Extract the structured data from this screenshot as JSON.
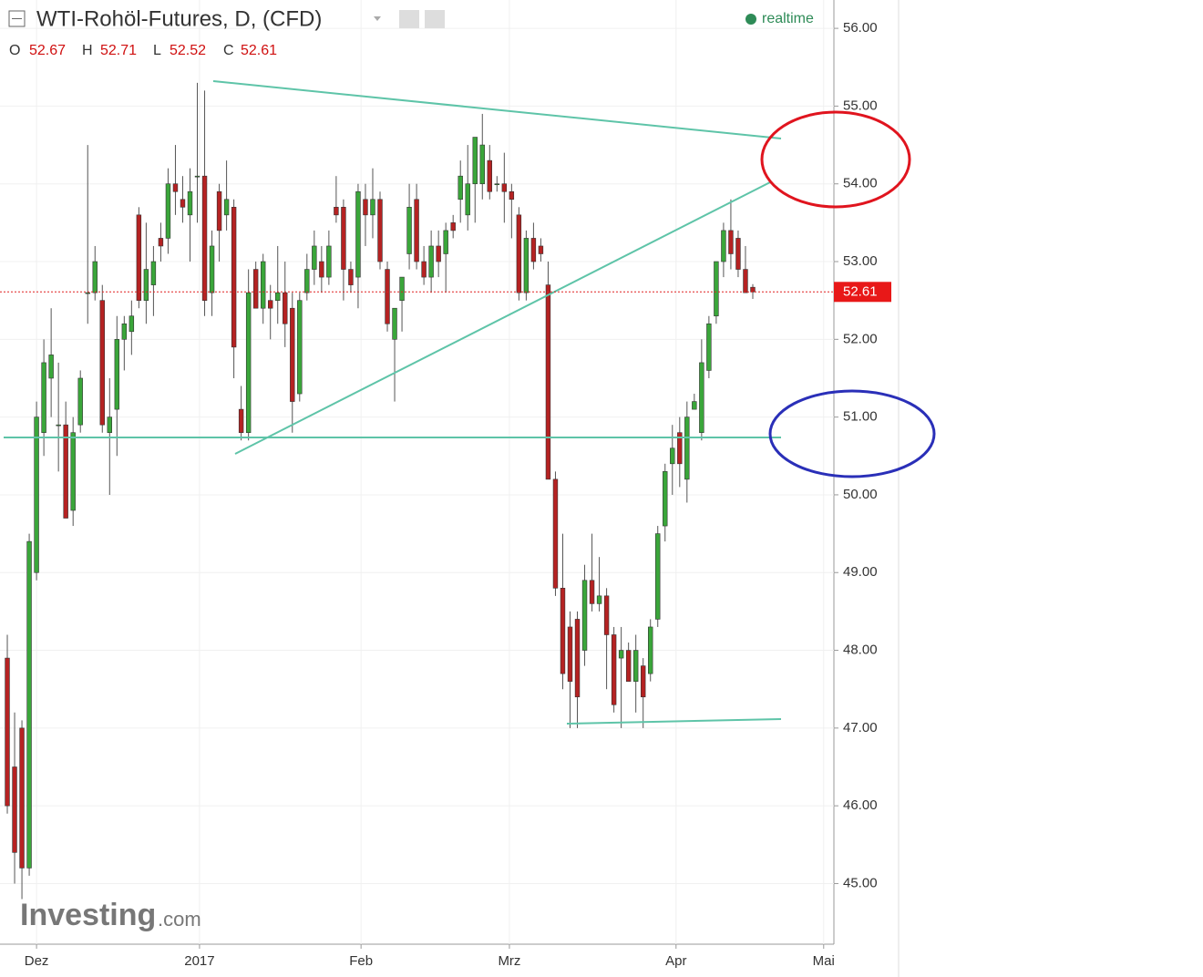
{
  "chart_data": {
    "type": "candlestick",
    "title": "WTI-Rohöl-Futures, D, (CFD)",
    "status": "realtime",
    "ohlc_labels": [
      "O",
      "H",
      "L",
      "C"
    ],
    "watermark": [
      "Investing",
      ".com"
    ],
    "up_color": "#3aa63a",
    "down_color": "#b52222",
    "ylim": [
      44.22,
      56.36
    ],
    "yticks": [
      {
        "value": 45,
        "label": "45.00"
      },
      {
        "value": 46,
        "label": "46.00"
      },
      {
        "value": 47,
        "label": "47.00"
      },
      {
        "value": 48,
        "label": "48.00"
      },
      {
        "value": 49,
        "label": "49.00"
      },
      {
        "value": 50,
        "label": "50.00"
      },
      {
        "value": 51,
        "label": "51.00"
      },
      {
        "value": 52,
        "label": "52.00"
      },
      {
        "value": 53,
        "label": "53.00"
      },
      {
        "value": 54,
        "label": "54.00"
      },
      {
        "value": 55,
        "label": "55.00"
      },
      {
        "value": 56,
        "label": "56.00"
      }
    ],
    "xlim": [
      -1.0,
      113.1
    ],
    "xticks": [
      {
        "value": 4.0,
        "label": "Dez"
      },
      {
        "value": 26.3,
        "label": "2017"
      },
      {
        "value": 48.4,
        "label": "Feb"
      },
      {
        "value": 68.7,
        "label": "Mrz"
      },
      {
        "value": 91.5,
        "label": "Apr"
      },
      {
        "value": 111.7,
        "label": "Mai"
      }
    ],
    "candles": {
      "open": [
        47.9,
        46.5,
        47.0,
        45.2,
        49.0,
        50.8,
        51.5,
        50.9,
        50.9,
        49.8,
        50.9,
        52.6,
        52.6,
        52.5,
        50.8,
        51.1,
        52.0,
        52.1,
        53.6,
        52.5,
        52.7,
        53.3,
        53.3,
        54.0,
        53.8,
        53.6,
        54.1,
        54.1,
        52.6,
        53.9,
        53.6,
        53.7,
        51.1,
        50.8,
        52.9,
        52.4,
        52.5,
        52.5,
        52.6,
        52.4,
        51.3,
        52.6,
        52.9,
        53.0,
        52.8,
        53.7,
        53.7,
        52.9,
        52.8,
        53.8,
        53.6,
        53.8,
        52.9,
        52.0,
        52.5,
        53.1,
        53.8,
        53.0,
        52.8,
        53.2,
        53.1,
        53.5,
        53.8,
        53.6,
        54.0,
        54.0,
        54.3,
        54.0,
        54.0,
        53.9,
        53.6,
        52.6,
        53.3,
        53.2,
        52.7,
        50.2,
        48.8,
        48.3,
        48.4,
        48.0,
        48.9,
        48.6,
        48.7,
        48.2,
        47.9,
        48.0,
        47.6,
        47.8,
        47.7,
        48.4,
        49.6,
        50.4,
        50.8,
        50.2,
        51.1,
        50.8,
        51.6,
        52.3,
        53.0,
        53.4,
        53.3,
        52.9,
        52.67
      ],
      "high": [
        48.2,
        47.2,
        47.1,
        49.5,
        51.2,
        52.0,
        52.4,
        51.7,
        51.2,
        51.0,
        51.6,
        54.5,
        53.2,
        52.7,
        51.5,
        52.3,
        52.3,
        52.5,
        53.7,
        53.5,
        53.2,
        53.5,
        54.2,
        54.5,
        54.1,
        54.2,
        55.3,
        55.2,
        53.4,
        54.0,
        54.3,
        53.8,
        51.4,
        52.9,
        53.0,
        53.1,
        52.7,
        53.2,
        53.0,
        52.6,
        52.6,
        53.1,
        53.4,
        53.2,
        53.4,
        54.1,
        53.8,
        53.0,
        54.0,
        54.0,
        54.2,
        53.9,
        53.0,
        52.4,
        52.8,
        54.0,
        54.0,
        53.2,
        53.4,
        53.4,
        53.5,
        53.6,
        54.3,
        54.5,
        54.6,
        54.9,
        54.5,
        54.1,
        54.4,
        54.0,
        53.7,
        53.4,
        53.5,
        53.3,
        53.0,
        50.3,
        49.5,
        48.5,
        48.5,
        49.1,
        49.5,
        49.2,
        48.8,
        48.3,
        48.3,
        48.1,
        48.2,
        47.9,
        48.4,
        49.6,
        50.4,
        50.9,
        51.0,
        51.2,
        51.3,
        52.0,
        52.3,
        53.0,
        53.5,
        53.8,
        53.4,
        53.2,
        52.71
      ],
      "low": [
        45.9,
        45.0,
        44.8,
        45.1,
        48.9,
        50.5,
        51.0,
        50.3,
        49.7,
        49.6,
        50.8,
        52.2,
        52.5,
        50.8,
        50.0,
        50.5,
        51.6,
        51.8,
        52.4,
        52.2,
        52.3,
        53.0,
        53.1,
        53.6,
        53.5,
        53.0,
        53.5,
        52.3,
        52.3,
        53.0,
        53.4,
        51.5,
        50.7,
        50.7,
        52.4,
        52.2,
        52.0,
        52.2,
        51.9,
        50.8,
        51.2,
        52.5,
        52.7,
        52.6,
        52.7,
        53.5,
        52.5,
        52.6,
        52.4,
        53.2,
        53.3,
        52.9,
        52.1,
        51.2,
        52.1,
        52.9,
        52.9,
        52.7,
        52.6,
        52.8,
        52.6,
        53.3,
        53.5,
        53.4,
        53.5,
        53.8,
        53.8,
        53.9,
        53.5,
        53.3,
        52.5,
        52.5,
        52.9,
        53.0,
        50.2,
        48.7,
        47.5,
        47.0,
        47.0,
        47.8,
        48.5,
        48.5,
        47.5,
        47.2,
        47.0,
        47.6,
        47.2,
        47.0,
        47.6,
        48.3,
        49.4,
        50.0,
        50.1,
        49.9,
        51.1,
        50.7,
        51.5,
        52.2,
        52.8,
        52.9,
        52.8,
        52.6,
        52.52
      ],
      "close": [
        46.0,
        45.4,
        45.2,
        49.4,
        51.0,
        51.7,
        51.8,
        50.9,
        49.7,
        50.8,
        51.5,
        52.6,
        53.0,
        50.9,
        51.0,
        52.0,
        52.2,
        52.3,
        52.5,
        52.9,
        53.0,
        53.2,
        54.0,
        53.9,
        53.7,
        53.9,
        54.1,
        52.5,
        53.2,
        53.4,
        53.8,
        51.9,
        50.8,
        52.6,
        52.4,
        53.0,
        52.4,
        52.6,
        52.2,
        51.2,
        52.5,
        52.9,
        53.2,
        52.8,
        53.2,
        53.6,
        52.9,
        52.7,
        53.9,
        53.6,
        53.8,
        53.0,
        52.2,
        52.4,
        52.8,
        53.7,
        53.0,
        52.8,
        53.2,
        53.0,
        53.4,
        53.4,
        54.1,
        54.0,
        54.6,
        54.5,
        53.9,
        54.0,
        53.9,
        53.8,
        52.6,
        53.3,
        53.0,
        53.1,
        50.2,
        48.8,
        47.7,
        47.6,
        47.4,
        48.9,
        48.6,
        48.7,
        48.2,
        47.3,
        48.0,
        47.6,
        48.0,
        47.4,
        48.3,
        49.5,
        50.3,
        50.6,
        50.4,
        51.0,
        51.2,
        51.7,
        52.2,
        53.0,
        53.4,
        53.1,
        52.9,
        52.6,
        52.61
      ]
    }
  }
}
